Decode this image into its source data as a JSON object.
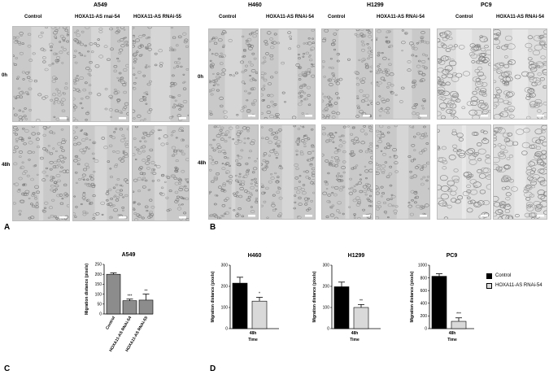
{
  "panels": {
    "a": "A",
    "b": "B",
    "c": "C",
    "d": "D"
  },
  "panel_a": {
    "cell_line": "A549",
    "columns": [
      "Control",
      "HOXA11-AS rnai-54",
      "HOXA11-AS RNAi-55"
    ],
    "rows": [
      "0h",
      "48h"
    ]
  },
  "panel_b": {
    "cell_lines": [
      "H460",
      "H1299",
      "PC9"
    ],
    "columns": [
      "Control",
      "HOXA11-AS RNAi-54",
      "Control",
      "HOXA11-AS RNAi-54",
      "Control",
      "HOXA11-AS RNAi-54"
    ],
    "rows": [
      "0h",
      "48h"
    ]
  },
  "legend": {
    "control": "Control",
    "rnai": "HOXA11-AS RNAi-54"
  },
  "colors": {
    "control_bar": "#000000",
    "rnai_bar": "#d9d9d9",
    "a549_bar": "#8c8c8c",
    "micro_bg": "#c9c9c9",
    "micro_dark": "#9a9a9a"
  },
  "chart_data": [
    {
      "type": "bar",
      "title": "A549",
      "ylabel": "Migration distance (pixels)",
      "xlabel": "",
      "ylim": [
        0,
        250
      ],
      "yticks": [
        0,
        50,
        100,
        150,
        200,
        250
      ],
      "categories": [
        "Control",
        "HOXA11-AS RNAi-54",
        "HOXA11-AS RNAi-55"
      ],
      "values": [
        200,
        67,
        70
      ],
      "errors": [
        7,
        8,
        30
      ],
      "significance": [
        "",
        "***",
        "**"
      ]
    },
    {
      "type": "bar",
      "title": "H460",
      "ylabel": "Migration distance (pixels)",
      "xlabel": "Time",
      "ylim": [
        0,
        300
      ],
      "yticks": [
        0,
        100,
        200,
        300
      ],
      "categories": [
        "48h"
      ],
      "series": [
        {
          "name": "Control",
          "values": [
            215
          ],
          "errors": [
            28
          ]
        },
        {
          "name": "HOXA11-AS RNAi-54",
          "values": [
            130
          ],
          "errors": [
            18
          ]
        }
      ],
      "significance": [
        "*"
      ]
    },
    {
      "type": "bar",
      "title": "H1299",
      "ylabel": "Migration distance (pixels)",
      "xlabel": "Time",
      "ylim": [
        0,
        300
      ],
      "yticks": [
        0,
        100,
        200,
        300
      ],
      "categories": [
        "48h"
      ],
      "series": [
        {
          "name": "Control",
          "values": [
            198
          ],
          "errors": [
            22
          ]
        },
        {
          "name": "HOXA11-AS RNAi-54",
          "values": [
            100
          ],
          "errors": [
            14
          ]
        }
      ],
      "significance": [
        "**"
      ]
    },
    {
      "type": "bar",
      "title": "PC9",
      "ylabel": "Migration distance (pixels)",
      "xlabel": "Time",
      "ylim": [
        0,
        1000
      ],
      "yticks": [
        0,
        200,
        400,
        600,
        800,
        1000
      ],
      "categories": [
        "48h"
      ],
      "series": [
        {
          "name": "Control",
          "values": [
            825
          ],
          "errors": [
            40
          ]
        },
        {
          "name": "HOXA11-AS RNAi-54",
          "values": [
            115
          ],
          "errors": [
            55
          ]
        }
      ],
      "significance": [
        "***"
      ]
    }
  ]
}
